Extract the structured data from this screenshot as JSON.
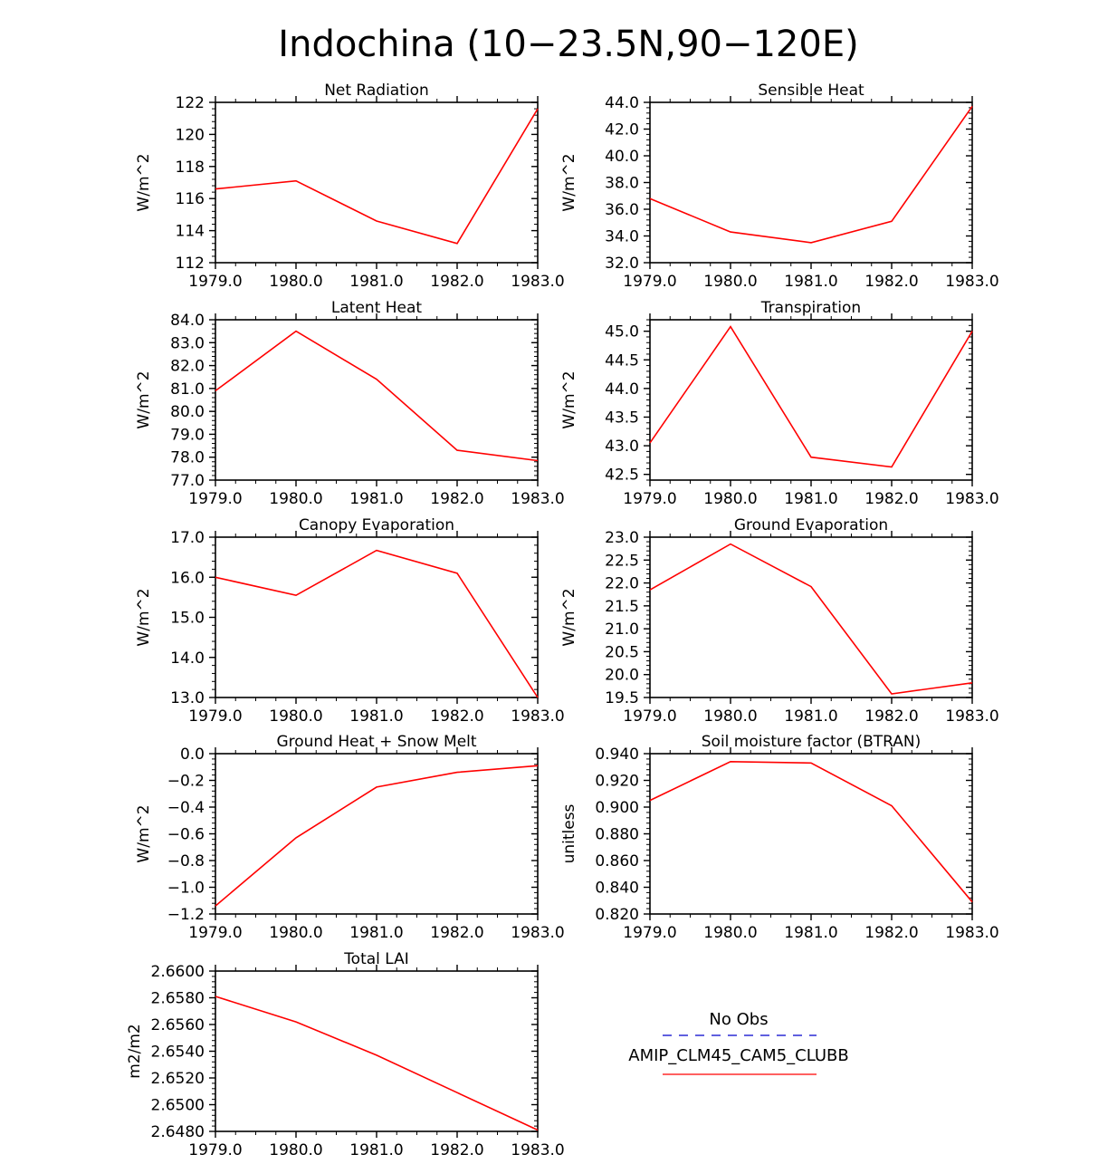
{
  "figure_title": "Indochina (10−23.5N,90−120E)",
  "colors": {
    "model_line": "#ff0000",
    "obs_line": "#0000cc",
    "axis": "#000000"
  },
  "legend": {
    "entries": [
      {
        "label": "No Obs",
        "style": "dashed",
        "color": "#0000cc"
      },
      {
        "label": "AMIP_CLM45_CAM5_CLUBB",
        "style": "solid",
        "color": "#ff0000"
      }
    ]
  },
  "chart_data": [
    {
      "type": "line",
      "title": "Net Radiation",
      "ylabel": "W/m^2",
      "x": [
        1979,
        1980,
        1981,
        1982,
        1983
      ],
      "x_tick_labels": [
        "1979.0",
        "1980.0",
        "1981.0",
        "1982.0",
        "1983.0"
      ],
      "ylim": [
        112,
        122
      ],
      "y_ticks": [
        112,
        114,
        116,
        118,
        120,
        122
      ],
      "y_tick_labels": [
        "112",
        "114",
        "116",
        "118",
        "120",
        "122"
      ],
      "series": [
        {
          "values": [
            116.6,
            117.1,
            114.6,
            113.2,
            121.6
          ]
        }
      ]
    },
    {
      "type": "line",
      "title": "Sensible Heat",
      "ylabel": "W/m^2",
      "x": [
        1979,
        1980,
        1981,
        1982,
        1983
      ],
      "x_tick_labels": [
        "1979.0",
        "1980.0",
        "1981.0",
        "1982.0",
        "1983.0"
      ],
      "ylim": [
        32,
        44
      ],
      "y_ticks": [
        32,
        34,
        36,
        38,
        40,
        42,
        44
      ],
      "y_tick_labels": [
        "32.0",
        "34.0",
        "36.0",
        "38.0",
        "40.0",
        "42.0",
        "44.0"
      ],
      "series": [
        {
          "values": [
            36.8,
            34.3,
            33.5,
            35.1,
            43.7
          ]
        }
      ]
    },
    {
      "type": "line",
      "title": "Latent Heat",
      "ylabel": "W/m^2",
      "x": [
        1979,
        1980,
        1981,
        1982,
        1983
      ],
      "x_tick_labels": [
        "1979.0",
        "1980.0",
        "1981.0",
        "1982.0",
        "1983.0"
      ],
      "ylim": [
        77,
        84
      ],
      "y_ticks": [
        77,
        78,
        79,
        80,
        81,
        82,
        83,
        84
      ],
      "y_tick_labels": [
        "77.0",
        "78.0",
        "79.0",
        "80.0",
        "81.0",
        "82.0",
        "83.0",
        "84.0"
      ],
      "series": [
        {
          "values": [
            80.9,
            83.5,
            81.4,
            78.3,
            77.85
          ]
        }
      ]
    },
    {
      "type": "line",
      "title": "Transpiration",
      "ylabel": "W/m^2",
      "x": [
        1979,
        1980,
        1981,
        1982,
        1983
      ],
      "x_tick_labels": [
        "1979.0",
        "1980.0",
        "1981.0",
        "1982.0",
        "1983.0"
      ],
      "ylim": [
        42.4,
        45.2
      ],
      "y_ticks": [
        42.5,
        43.0,
        43.5,
        44.0,
        44.5,
        45.0
      ],
      "y_tick_labels": [
        "42.5",
        "43.0",
        "43.5",
        "44.0",
        "44.5",
        "45.0"
      ],
      "series": [
        {
          "values": [
            43.05,
            45.08,
            42.8,
            42.63,
            45.0
          ]
        }
      ]
    },
    {
      "type": "line",
      "title": "Canopy Evaporation",
      "ylabel": "W/m^2",
      "x": [
        1979,
        1980,
        1981,
        1982,
        1983
      ],
      "x_tick_labels": [
        "1979.0",
        "1980.0",
        "1981.0",
        "1982.0",
        "1983.0"
      ],
      "ylim": [
        13,
        17
      ],
      "y_ticks": [
        13,
        14,
        15,
        16,
        17
      ],
      "y_tick_labels": [
        "13.0",
        "14.0",
        "15.0",
        "16.0",
        "17.0"
      ],
      "series": [
        {
          "values": [
            16.0,
            15.55,
            16.67,
            16.1,
            13.0
          ]
        }
      ]
    },
    {
      "type": "line",
      "title": "Ground Evaporation",
      "ylabel": "W/m^2",
      "x": [
        1979,
        1980,
        1981,
        1982,
        1983
      ],
      "x_tick_labels": [
        "1979.0",
        "1980.0",
        "1981.0",
        "1982.0",
        "1983.0"
      ],
      "ylim": [
        19.5,
        23
      ],
      "y_ticks": [
        19.5,
        20.0,
        20.5,
        21.0,
        21.5,
        22.0,
        22.5,
        23.0
      ],
      "y_tick_labels": [
        "19.5",
        "20.0",
        "20.5",
        "21.0",
        "21.5",
        "22.0",
        "22.5",
        "23.0"
      ],
      "series": [
        {
          "values": [
            21.85,
            22.85,
            21.92,
            19.58,
            19.82
          ]
        }
      ]
    },
    {
      "type": "line",
      "title": "Ground Heat + Snow Melt",
      "ylabel": "W/m^2",
      "x": [
        1979,
        1980,
        1981,
        1982,
        1983
      ],
      "x_tick_labels": [
        "1979.0",
        "1980.0",
        "1981.0",
        "1982.0",
        "1983.0"
      ],
      "ylim": [
        -1.2,
        0
      ],
      "y_ticks": [
        -1.2,
        -1.0,
        -0.8,
        -0.6,
        -0.4,
        -0.2,
        0.0
      ],
      "y_tick_labels": [
        "−1.2",
        "−1.0",
        "−0.8",
        "−0.6",
        "−0.4",
        "−0.2",
        "0.0"
      ],
      "series": [
        {
          "values": [
            -1.14,
            -0.63,
            -0.25,
            -0.14,
            -0.09
          ]
        }
      ]
    },
    {
      "type": "line",
      "title": "Soil moisture factor (BTRAN)",
      "ylabel": "unitless",
      "x": [
        1979,
        1980,
        1981,
        1982,
        1983
      ],
      "x_tick_labels": [
        "1979.0",
        "1980.0",
        "1981.0",
        "1982.0",
        "1983.0"
      ],
      "ylim": [
        0.82,
        0.94
      ],
      "y_ticks": [
        0.82,
        0.84,
        0.86,
        0.88,
        0.9,
        0.92,
        0.94
      ],
      "y_tick_labels": [
        "0.820",
        "0.840",
        "0.860",
        "0.880",
        "0.900",
        "0.920",
        "0.940"
      ],
      "series": [
        {
          "values": [
            0.905,
            0.934,
            0.933,
            0.901,
            0.829
          ]
        }
      ]
    },
    {
      "type": "line",
      "title": "Total LAI",
      "ylabel": "m2/m2",
      "x": [
        1979,
        1980,
        1981,
        1982,
        1983
      ],
      "x_tick_labels": [
        "1979.0",
        "1980.0",
        "1981.0",
        "1982.0",
        "1983.0"
      ],
      "ylim": [
        2.648,
        2.66
      ],
      "y_ticks": [
        2.648,
        2.65,
        2.652,
        2.654,
        2.656,
        2.658,
        2.66
      ],
      "y_tick_labels": [
        "2.6480",
        "2.6500",
        "2.6520",
        "2.6540",
        "2.6560",
        "2.6580",
        "2.6600"
      ],
      "series": [
        {
          "values": [
            2.6581,
            2.6562,
            2.6537,
            2.6509,
            2.6481
          ]
        }
      ]
    }
  ]
}
